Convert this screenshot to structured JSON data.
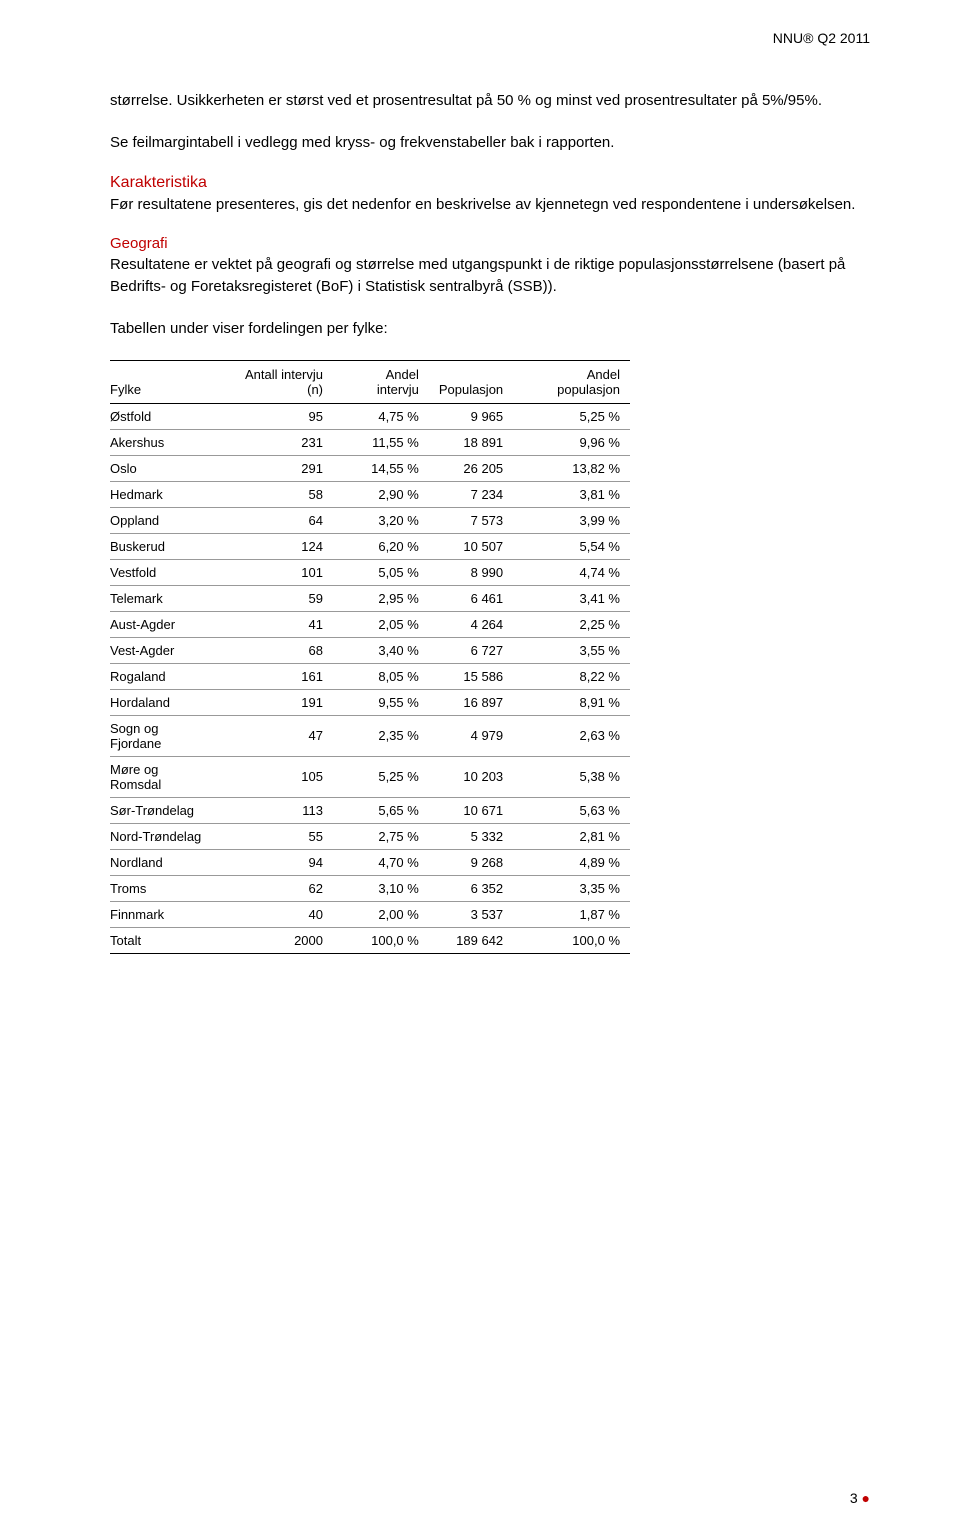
{
  "header": {
    "right": "NNU® Q2 2011"
  },
  "para1": "størrelse. Usikkerheten er størst ved et prosentresultat på 50 % og minst ved prosentresultater på 5%/95%.",
  "para2": "Se feilmargintabell i vedlegg med kryss- og frekvenstabeller bak i rapporten.",
  "karakteristika": {
    "heading": "Karakteristika",
    "text": "Før resultatene presenteres, gis det nedenfor en beskrivelse av kjennetegn ved respondentene i undersøkelsen."
  },
  "geografi": {
    "heading": "Geografi",
    "text": "Resultatene er vektet på geografi og størrelse med utgangspunkt i de riktige populasjonsstørrelsene (basert på Bedrifts- og Foretaksregisteret (BoF) i Statistisk sentralbyrå (SSB)).",
    "tableIntro": "Tabellen under viser fordelingen per fylke:"
  },
  "table": {
    "columns": [
      "Fylke",
      "Antall intervju (n)",
      "Andel intervju",
      "Populasjon",
      "Andel populasjon"
    ],
    "col_align": [
      "left",
      "right",
      "right",
      "right",
      "right"
    ],
    "col_widths": [
      "150px",
      "90px",
      "90px",
      "90px",
      "100px"
    ],
    "border_color": "#000000",
    "row_border_color": "#999999",
    "fontsize": 13,
    "rows": [
      [
        "Østfold",
        "95",
        "4,75 %",
        "9 965",
        "5,25 %"
      ],
      [
        "Akershus",
        "231",
        "11,55 %",
        "18 891",
        "9,96 %"
      ],
      [
        "Oslo",
        "291",
        "14,55 %",
        "26 205",
        "13,82 %"
      ],
      [
        "Hedmark",
        "58",
        "2,90 %",
        "7 234",
        "3,81 %"
      ],
      [
        "Oppland",
        "64",
        "3,20 %",
        "7 573",
        "3,99 %"
      ],
      [
        "Buskerud",
        "124",
        "6,20 %",
        "10 507",
        "5,54 %"
      ],
      [
        "Vestfold",
        "101",
        "5,05 %",
        "8 990",
        "4,74 %"
      ],
      [
        "Telemark",
        "59",
        "2,95 %",
        "6 461",
        "3,41 %"
      ],
      [
        "Aust-Agder",
        "41",
        "2,05 %",
        "4 264",
        "2,25 %"
      ],
      [
        "Vest-Agder",
        "68",
        "3,40 %",
        "6 727",
        "3,55 %"
      ],
      [
        "Rogaland",
        "161",
        "8,05 %",
        "15 586",
        "8,22 %"
      ],
      [
        "Hordaland",
        "191",
        "9,55 %",
        "16 897",
        "8,91 %"
      ],
      [
        "Sogn og Fjordane",
        "47",
        "2,35 %",
        "4 979",
        "2,63 %"
      ],
      [
        "Møre og Romsdal",
        "105",
        "5,25 %",
        "10 203",
        "5,38 %"
      ],
      [
        "Sør-Trøndelag",
        "113",
        "5,65 %",
        "10 671",
        "5,63 %"
      ],
      [
        "Nord-Trøndelag",
        "55",
        "2,75 %",
        "5 332",
        "2,81 %"
      ],
      [
        "Nordland",
        "94",
        "4,70 %",
        "9 268",
        "4,89 %"
      ],
      [
        "Troms",
        "62",
        "3,10 %",
        "6 352",
        "3,35 %"
      ],
      [
        "Finnmark",
        "40",
        "2,00 %",
        "3 537",
        "1,87 %"
      ]
    ],
    "total": [
      "Totalt",
      "2000",
      "100,0 %",
      "189 642",
      "100,0 %"
    ]
  },
  "footer": {
    "pageNum": "3",
    "dot": "●"
  },
  "colors": {
    "heading_red": "#c00000",
    "text_black": "#000000",
    "background": "#ffffff"
  }
}
